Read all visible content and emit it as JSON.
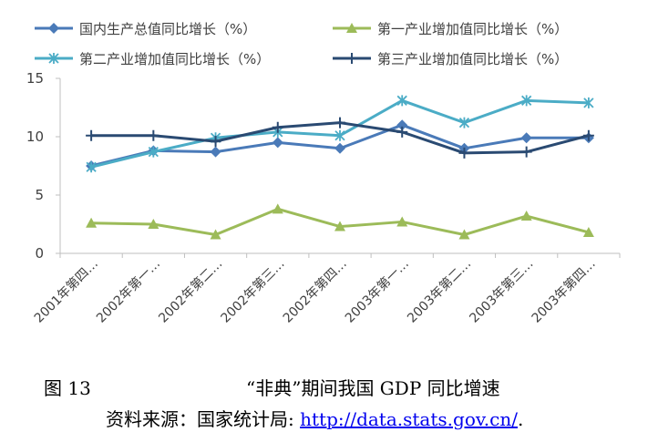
{
  "chart_data": {
    "type": "line",
    "categories": [
      "2001年第四…",
      "2002年第一…",
      "2002年第二…",
      "2002年第三…",
      "2002年第四…",
      "2003年第一…",
      "2003年第二…",
      "2003年第三…",
      "2003年第四…"
    ],
    "ylim": [
      0,
      15
    ],
    "yticks": [
      0,
      5,
      10,
      15
    ],
    "grid": false,
    "legend_position": "top",
    "series": [
      {
        "name": "国内生产总值同比增长（%）",
        "marker": "diamond",
        "color": "#4a7ab8",
        "values": [
          7.5,
          8.8,
          8.7,
          9.5,
          9.0,
          11.0,
          9.0,
          9.9,
          9.9
        ]
      },
      {
        "name": "第一产业增加值同比增长（%）",
        "marker": "triangle",
        "color": "#9cbb59",
        "values": [
          2.6,
          2.5,
          1.6,
          3.8,
          2.3,
          2.7,
          1.6,
          3.2,
          1.8
        ]
      },
      {
        "name": "第二产业增加值同比增长（%）",
        "marker": "asterisk",
        "color": "#4bacc6",
        "values": [
          7.4,
          8.7,
          9.9,
          10.4,
          10.1,
          13.1,
          11.2,
          13.1,
          12.9
        ]
      },
      {
        "name": "第三产业增加值同比增长（%）",
        "marker": "plus",
        "color": "#2a4a72",
        "values": [
          10.1,
          10.1,
          9.6,
          10.8,
          11.2,
          10.4,
          8.6,
          8.7,
          10.1
        ]
      }
    ]
  },
  "caption": {
    "figure_number": "图 13",
    "title": "“非典”期间我国 GDP 同比增速",
    "source_label": "资料来源：国家统计局: ",
    "source_url": "http://data.stats.gov.cn/",
    "source_suffix": "."
  }
}
